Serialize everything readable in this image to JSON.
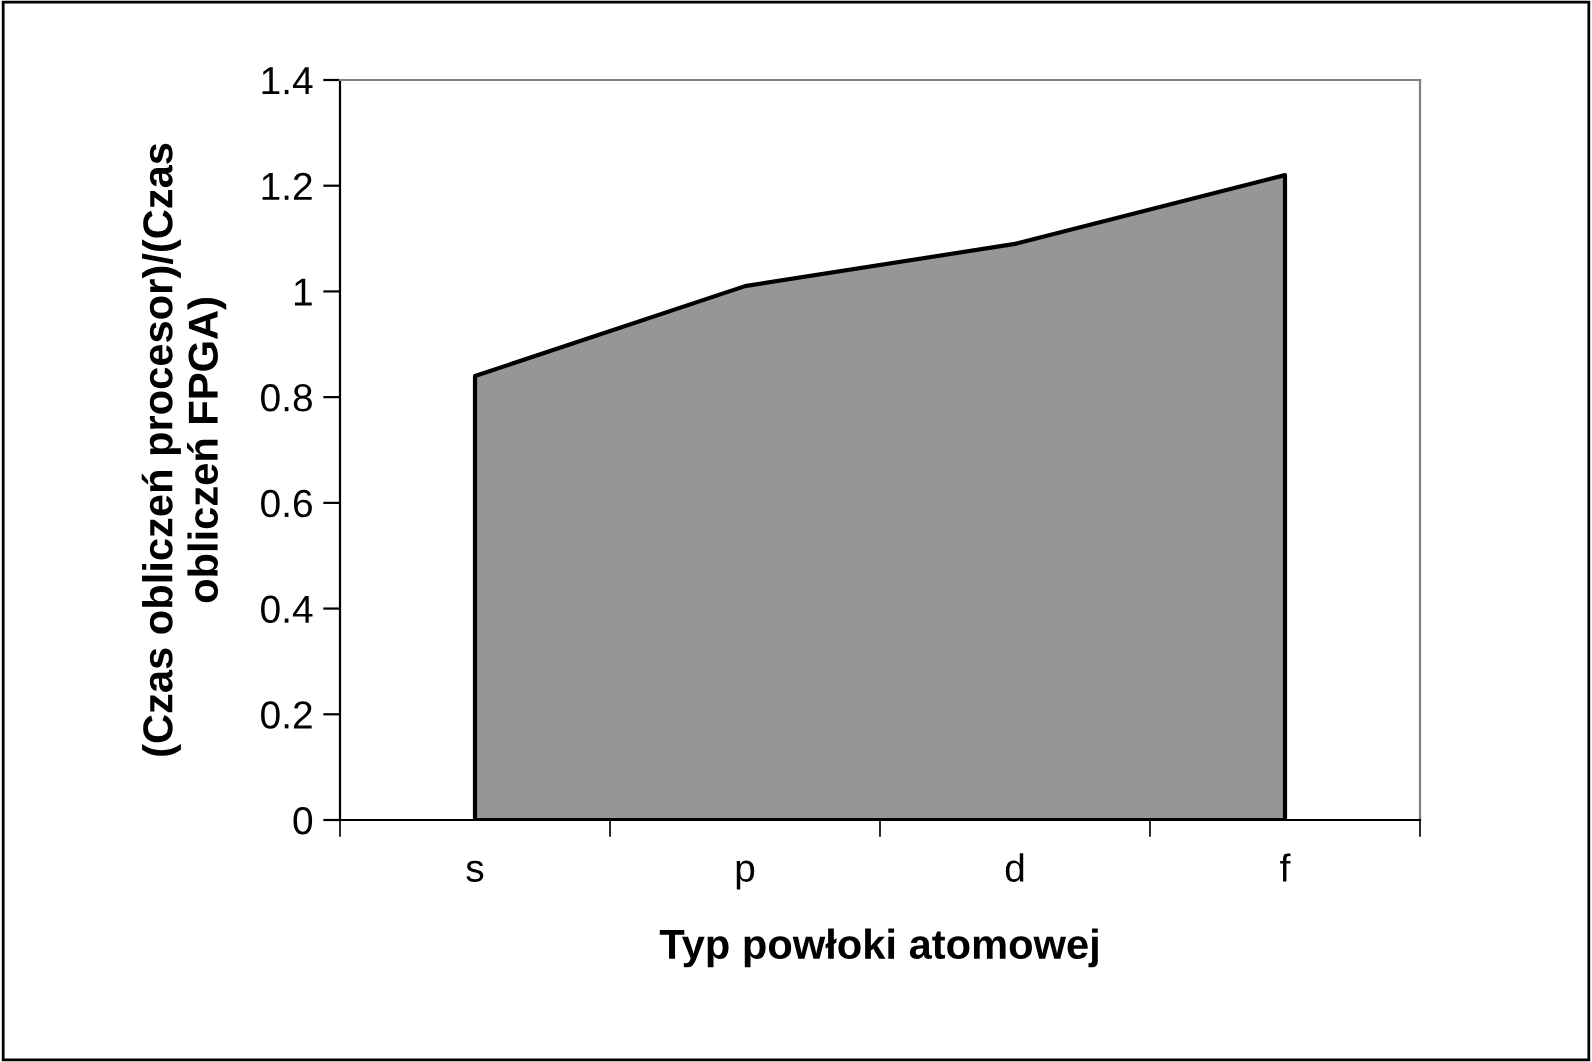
{
  "chart_data": {
    "type": "area",
    "xlabel": "Typ powłoki atomowej",
    "ylabel": "(Czas obliczeń procesor)/(Czas\nobliczeń FPGA)",
    "categories": [
      "s",
      "p",
      "d",
      "f"
    ],
    "series": [
      {
        "color": "#969696",
        "values": [
          0.84,
          1.01,
          1.09,
          1.22
        ]
      }
    ],
    "ylim": [
      0,
      1.4
    ],
    "yticks": [
      0,
      0.2,
      0.4,
      0.6,
      0.8,
      1,
      1.2,
      1.4
    ],
    "grid": false,
    "legend": false
  }
}
